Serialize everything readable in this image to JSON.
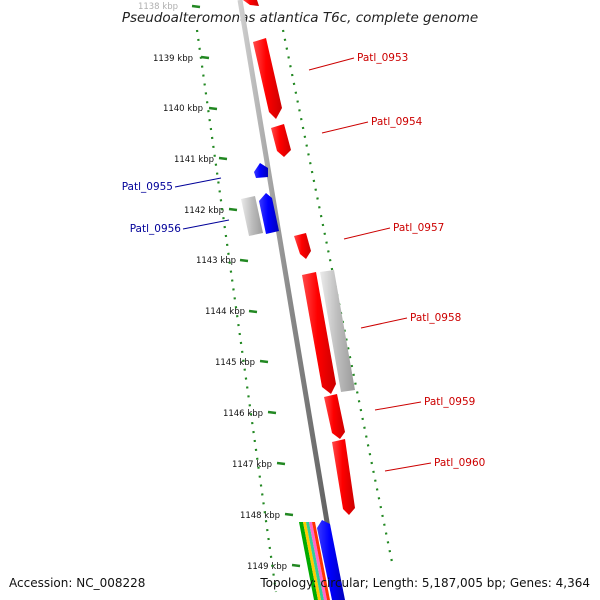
{
  "title": "Pseudoalteromonas atlantica T6c, complete genome",
  "footer": {
    "accession": "Accession: NC_008228",
    "summary": "Topology: circular; Length: 5,187,005 bp; Genes: 4,364"
  },
  "colors": {
    "forward": "#ff0000",
    "reverse": "#0000ff",
    "rna": "#bbbbbb",
    "backbone": "#888888",
    "tick": "#228822",
    "forward_label": "#cc0000",
    "reverse_label": "#000099"
  },
  "ruler": {
    "labels": [
      "1138 kbp",
      "1139 kbp",
      "1140 kbp",
      "1141 kbp",
      "1142 kbp",
      "1143 kbp",
      "1144 kbp",
      "1145 kbp",
      "1146 kbp",
      "1147 kbp",
      "1148 kbp",
      "1149 kbp"
    ]
  },
  "genes": [
    {
      "label": "Patl_0953",
      "strand": "forward"
    },
    {
      "label": "Patl_0954",
      "strand": "forward"
    },
    {
      "label": "Patl_0955",
      "strand": "reverse"
    },
    {
      "label": "Patl_0956",
      "strand": "reverse"
    },
    {
      "label": "Patl_0957",
      "strand": "forward"
    },
    {
      "label": "Patl_0958",
      "strand": "forward"
    },
    {
      "label": "Patl_0959",
      "strand": "forward"
    },
    {
      "label": "Patl_0960",
      "strand": "forward"
    }
  ]
}
